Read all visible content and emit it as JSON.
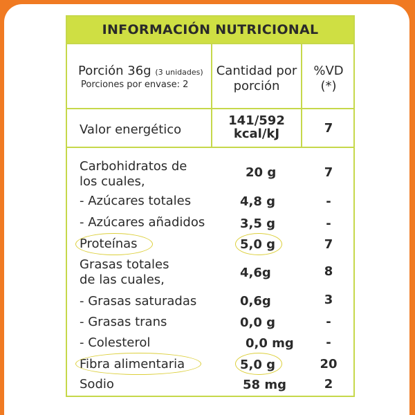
{
  "title": "INFORMACIÓN NUTRICIONAL",
  "header": {
    "portion_label": "Porción 36g",
    "portion_units": "(3 unidades)",
    "portions_per_pack": "Porciones por envase: 2",
    "qty_col_line1": "Cantidad por",
    "qty_col_line2": "porción",
    "vd_col_line1": "%VD",
    "vd_col_line2": "(*)"
  },
  "energy": {
    "label": "Valor energético",
    "amount_line1": "141/592",
    "amount_line2": "kcal/kJ",
    "vd": "7"
  },
  "rows": [
    {
      "label": "Carbohidratos de",
      "label2": "los cuales,",
      "amount": "20 g",
      "vd": "7"
    },
    {
      "label": "- Azúcares totales",
      "amount": "4,8 g",
      "vd": "-"
    },
    {
      "label": "- Azúcares añadidos",
      "amount": "3,5 g",
      "vd": "-"
    },
    {
      "label": "Proteínas",
      "amount": "5,0 g",
      "vd": "7"
    },
    {
      "label": "Grasas totales",
      "label2": "de las cuales,",
      "amount": "4,6g",
      "vd": "8"
    },
    {
      "label": "- Grasas saturadas",
      "amount": "0,6g",
      "vd": "3"
    },
    {
      "label": "- Grasas trans",
      "amount": "0,0 g",
      "vd": "-"
    },
    {
      "label": "- Colesterol",
      "amount": "0,0 mg",
      "vd": "-"
    },
    {
      "label": "Fibra alimentaria",
      "amount": "5,0 g",
      "vd": "20"
    },
    {
      "label": "Sodio",
      "amount": "58 mg",
      "vd": "2"
    }
  ],
  "colors": {
    "background_orange": "#f07a22",
    "title_bar_green": "#cfdf43",
    "grid_line_green": "#c6d84a",
    "highlight_circle_yellow": "#dccf3a"
  }
}
